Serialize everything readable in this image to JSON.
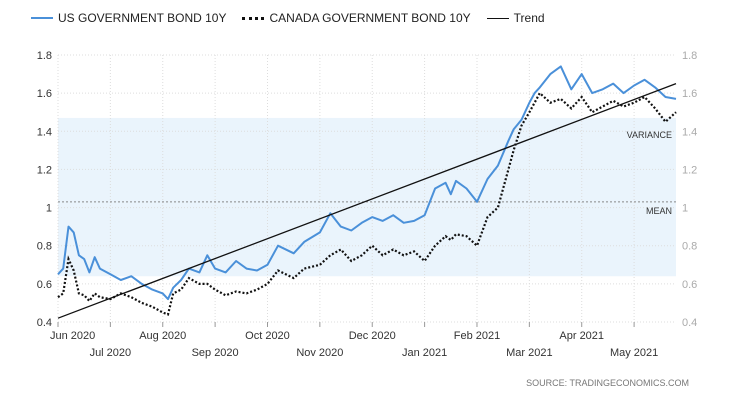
{
  "legend": {
    "us": "US GOVERNMENT BOND 10Y",
    "canada": "CANADA GOVERNMENT BOND 10Y",
    "trend": "Trend"
  },
  "annotations": {
    "variance": "VARIANCE",
    "mean": "MEAN"
  },
  "source": "SOURCE: TRADINGECONOMICS.COM",
  "colors": {
    "us": "#4a90d9",
    "canada": "#111111",
    "trend": "#111111",
    "band": "#eaf4fc",
    "grid": "#dddddd"
  },
  "chart_data": {
    "type": "line",
    "x_unit": "month index (0 = Jun 2020)",
    "xlim": [
      0,
      11.8
    ],
    "ylim": [
      0.4,
      1.8
    ],
    "yticks": [
      0.4,
      0.6,
      0.8,
      1,
      1.2,
      1.4,
      1.6,
      1.8
    ],
    "ytick_labels": [
      "0.4",
      "0.6",
      "0.8",
      "1",
      "1.2",
      "1.4",
      "1.6",
      "1.8"
    ],
    "xticks": [
      {
        "label": "Jun 2020",
        "x": 0
      },
      {
        "label": "Jul 2020",
        "x": 1
      },
      {
        "label": "Aug 2020",
        "x": 2
      },
      {
        "label": "Sep 2020",
        "x": 3
      },
      {
        "label": "Oct 2020",
        "x": 4
      },
      {
        "label": "Nov 2020",
        "x": 5
      },
      {
        "label": "Dec 2020",
        "x": 6
      },
      {
        "label": "Jan 2021",
        "x": 7
      },
      {
        "label": "Feb 2021",
        "x": 8
      },
      {
        "label": "Mar 2021",
        "x": 9
      },
      {
        "label": "Apr 2021",
        "x": 10
      },
      {
        "label": "May 2021",
        "x": 11
      }
    ],
    "mean": 1.03,
    "variance_band": [
      0.64,
      1.47
    ],
    "trend": {
      "x": [
        0,
        11.8
      ],
      "y": [
        0.42,
        1.65
      ]
    },
    "series": [
      {
        "name": "US GOVERNMENT BOND 10Y",
        "x": [
          0,
          0.1,
          0.2,
          0.3,
          0.4,
          0.5,
          0.6,
          0.7,
          0.8,
          1,
          1.2,
          1.4,
          1.6,
          1.8,
          2,
          2.1,
          2.2,
          2.35,
          2.5,
          2.7,
          2.85,
          3,
          3.2,
          3.4,
          3.6,
          3.8,
          4,
          4.2,
          4.5,
          4.7,
          5,
          5.2,
          5.4,
          5.6,
          5.8,
          6,
          6.2,
          6.4,
          6.6,
          6.8,
          7,
          7.2,
          7.4,
          7.5,
          7.6,
          7.8,
          8,
          8.2,
          8.4,
          8.6,
          8.7,
          8.85,
          9,
          9.1,
          9.2,
          9.4,
          9.6,
          9.8,
          10,
          10.2,
          10.4,
          10.6,
          10.8,
          11,
          11.2,
          11.4,
          11.6,
          11.8
        ],
        "y": [
          0.65,
          0.68,
          0.9,
          0.87,
          0.75,
          0.73,
          0.66,
          0.74,
          0.68,
          0.65,
          0.62,
          0.64,
          0.6,
          0.57,
          0.55,
          0.52,
          0.58,
          0.62,
          0.68,
          0.66,
          0.75,
          0.68,
          0.66,
          0.72,
          0.68,
          0.67,
          0.7,
          0.8,
          0.76,
          0.82,
          0.87,
          0.97,
          0.9,
          0.88,
          0.92,
          0.95,
          0.93,
          0.96,
          0.92,
          0.93,
          0.96,
          1.1,
          1.13,
          1.07,
          1.14,
          1.1,
          1.03,
          1.15,
          1.22,
          1.35,
          1.41,
          1.46,
          1.55,
          1.6,
          1.63,
          1.7,
          1.74,
          1.62,
          1.7,
          1.6,
          1.62,
          1.65,
          1.6,
          1.64,
          1.67,
          1.63,
          1.58,
          1.57
        ]
      },
      {
        "name": "CANADA GOVERNMENT BOND 10Y",
        "x": [
          0,
          0.1,
          0.2,
          0.3,
          0.4,
          0.5,
          0.6,
          0.7,
          0.8,
          1,
          1.2,
          1.4,
          1.6,
          1.8,
          2,
          2.1,
          2.2,
          2.35,
          2.5,
          2.7,
          2.85,
          3,
          3.2,
          3.4,
          3.6,
          3.8,
          4,
          4.2,
          4.5,
          4.7,
          5,
          5.2,
          5.4,
          5.6,
          5.8,
          6,
          6.2,
          6.4,
          6.6,
          6.8,
          7,
          7.2,
          7.4,
          7.5,
          7.6,
          7.8,
          8,
          8.2,
          8.4,
          8.6,
          8.7,
          8.85,
          9,
          9.1,
          9.2,
          9.4,
          9.6,
          9.8,
          10,
          10.2,
          10.4,
          10.6,
          10.8,
          11,
          11.2,
          11.4,
          11.6,
          11.8
        ],
        "y": [
          0.53,
          0.55,
          0.73,
          0.67,
          0.55,
          0.54,
          0.51,
          0.55,
          0.53,
          0.52,
          0.55,
          0.53,
          0.5,
          0.48,
          0.45,
          0.44,
          0.55,
          0.57,
          0.63,
          0.6,
          0.6,
          0.57,
          0.54,
          0.56,
          0.55,
          0.57,
          0.6,
          0.67,
          0.63,
          0.68,
          0.7,
          0.75,
          0.78,
          0.72,
          0.75,
          0.8,
          0.75,
          0.78,
          0.75,
          0.77,
          0.72,
          0.8,
          0.85,
          0.83,
          0.86,
          0.85,
          0.8,
          0.95,
          1.0,
          1.2,
          1.3,
          1.43,
          1.5,
          1.55,
          1.6,
          1.55,
          1.57,
          1.52,
          1.58,
          1.5,
          1.53,
          1.56,
          1.53,
          1.55,
          1.58,
          1.52,
          1.45,
          1.5
        ]
      }
    ]
  }
}
